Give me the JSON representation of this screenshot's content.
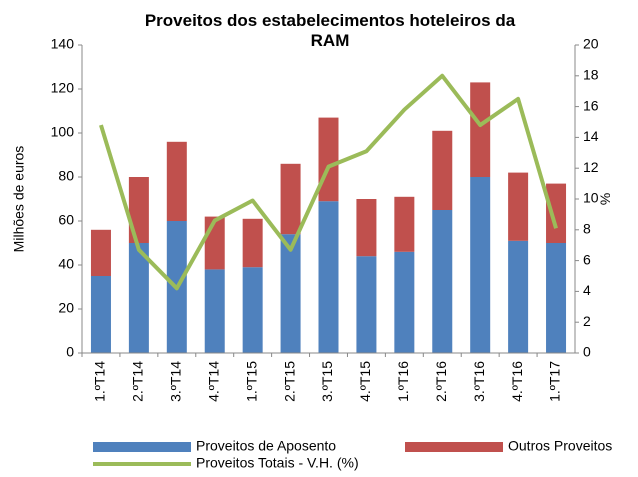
{
  "chart_data": {
    "type": "bar_line",
    "title": "Proveitos dos estabelecimentos hoteleiros da RAM",
    "y_label": "Milhões de euros",
    "y2_label": "%",
    "categories": [
      "1.ºT14",
      "2.ºT14",
      "3.ºT14",
      "4.ºT14",
      "1.ºT15",
      "2.ºT15",
      "3.ºT15",
      "4.ºT15",
      "1.ºT16",
      "2.ºT16",
      "3.ºT16",
      "4.ºT16",
      "1.ºT17"
    ],
    "series": [
      {
        "name": "Proveitos de Aposento",
        "type": "bar",
        "color": "#4f81bd",
        "values": [
          35,
          50,
          60,
          38,
          39,
          54,
          69,
          44,
          46,
          65,
          80,
          51,
          50
        ]
      },
      {
        "name": "Outros Proveitos",
        "type": "bar",
        "color": "#c0504d",
        "values": [
          21,
          30,
          36,
          24,
          22,
          32,
          38,
          26,
          25,
          36,
          43,
          31,
          27
        ]
      },
      {
        "name": "Proveitos Totais - V.H. (%)",
        "type": "line",
        "axis": "y2",
        "color": "#9bbb59",
        "values": [
          14.8,
          6.7,
          4.2,
          8.6,
          9.9,
          6.7,
          12.1,
          13.1,
          15.8,
          18,
          14.8,
          16.5,
          8.1
        ]
      }
    ],
    "ylim": [
      0,
      140
    ],
    "yticks": [
      0,
      20,
      40,
      60,
      80,
      100,
      120,
      140
    ],
    "y2lim": [
      0,
      20
    ],
    "y2ticks": [
      0,
      2,
      4,
      6,
      8,
      10,
      12,
      14,
      16,
      18,
      20
    ],
    "stacked": true,
    "legend": "bottom"
  }
}
